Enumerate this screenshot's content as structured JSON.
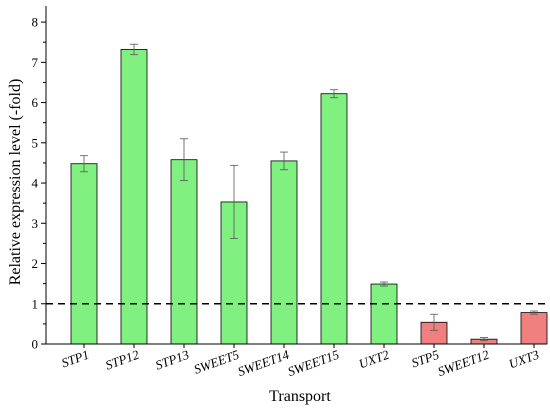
{
  "chart_data": {
    "type": "bar",
    "categories": [
      "STP1",
      "STP12",
      "STP13",
      "SWEET5",
      "SWEET14",
      "SWEET15",
      "UXT2",
      "STP5",
      "SWEET12",
      "UXT3"
    ],
    "values": [
      4.48,
      7.32,
      4.58,
      3.53,
      4.55,
      6.22,
      1.49,
      0.54,
      0.12,
      0.78
    ],
    "errors": [
      0.2,
      0.13,
      0.52,
      0.91,
      0.22,
      0.1,
      0.05,
      0.2,
      0.04,
      0.04
    ],
    "bar_colors": [
      "#80f080",
      "#80f080",
      "#80f080",
      "#80f080",
      "#80f080",
      "#80f080",
      "#80f080",
      "#f08080",
      "#f08080",
      "#f08080"
    ],
    "title": "",
    "xlabel": "Transport",
    "ylabel": "Relative expression level (-fold)",
    "ylim": [
      0,
      8.4
    ],
    "yticks": [
      0,
      1,
      2,
      3,
      4,
      5,
      6,
      7,
      8
    ],
    "reference_line": {
      "y": 1,
      "style": "dashed"
    },
    "grid": false,
    "legend": "none"
  }
}
